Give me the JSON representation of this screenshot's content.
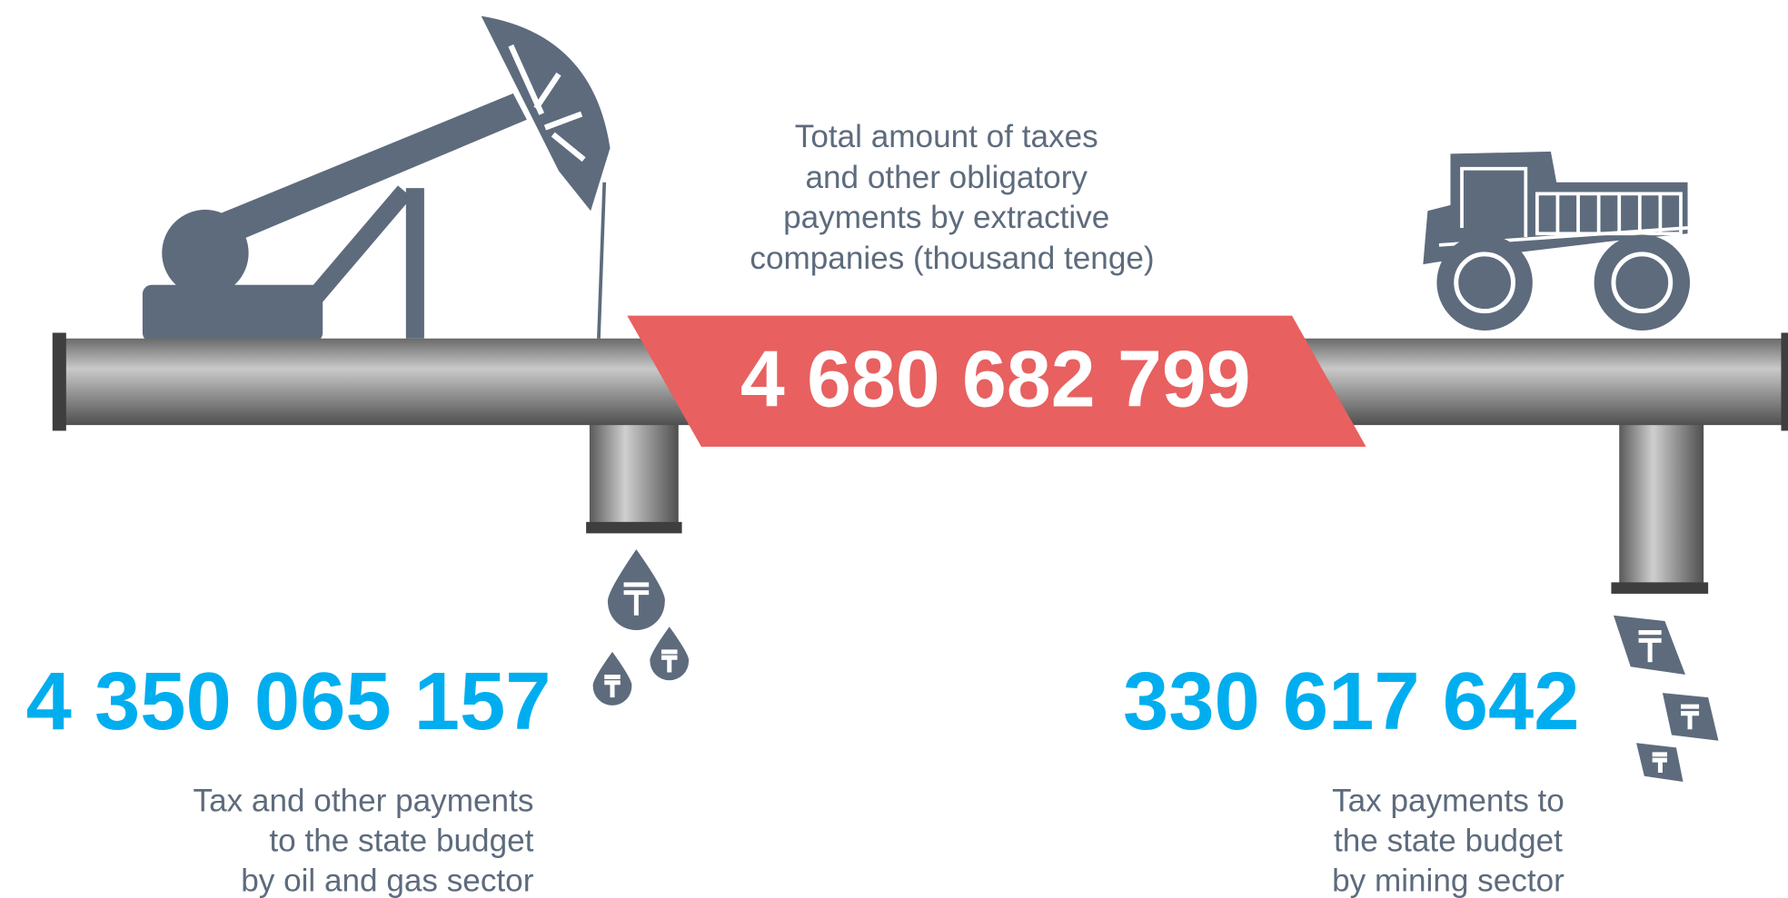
{
  "center": {
    "caption_lines": [
      "Total amount of taxes",
      "and other obligatory",
      "payments by extractive",
      "companies (thousand tenge)"
    ],
    "total": "4 680 682 799"
  },
  "oil_gas": {
    "total": "4 350 065 157",
    "caption_lines": [
      "Tax and other payments",
      "to the state budget",
      "by oil and gas sector"
    ]
  },
  "mining": {
    "total": "330 617 642",
    "caption_lines": [
      "Tax payments to",
      "the state budget",
      "by mining sector"
    ]
  }
}
